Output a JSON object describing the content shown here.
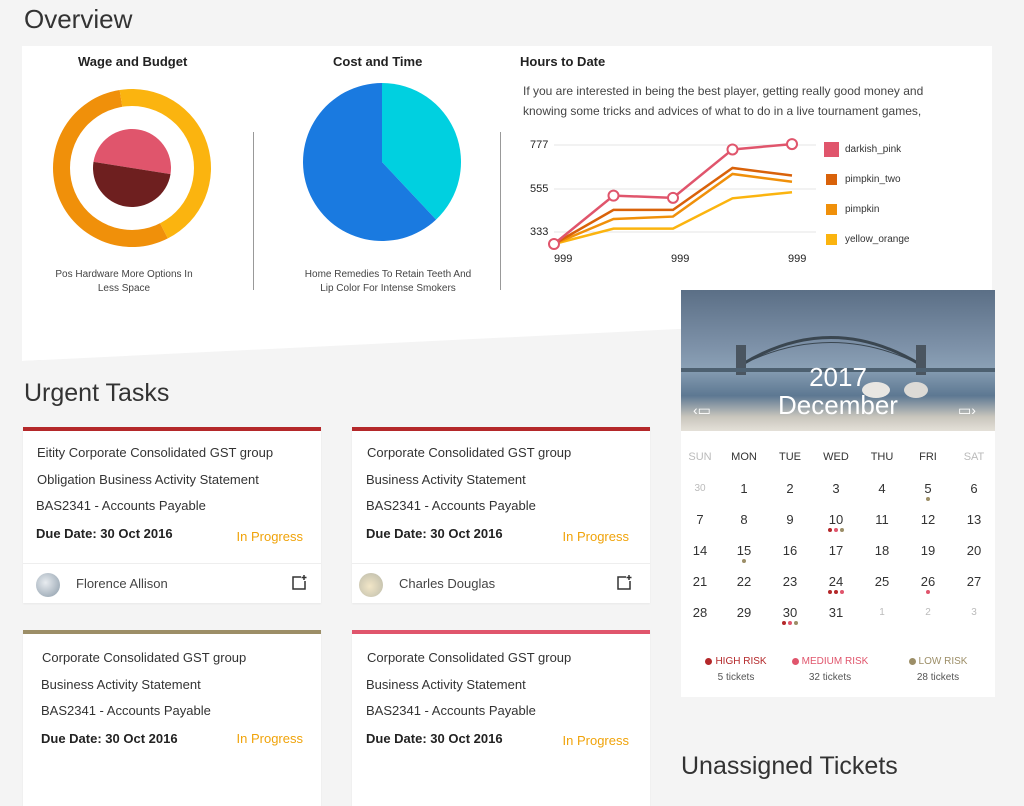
{
  "page": {
    "title": "Overview"
  },
  "overview": {
    "wage": {
      "title": "Wage and Budget",
      "caption_line1": "Pos Hardware More Options In",
      "caption_line2": "Less Space"
    },
    "cost": {
      "title": "Cost  and Time",
      "caption_line1": "Home Remedies To Retain Teeth And",
      "caption_line2": "Lip Color For Intense Smokers"
    },
    "hours": {
      "title": "Hours to Date",
      "description": "If you are interested in being the best player, getting really good money and knowing some tricks and advices of what to do in a live tournament games,"
    }
  },
  "chart_data": [
    {
      "type": "pie",
      "variant": "donut-with-inner-pie",
      "outer_ring": [
        {
          "color": "#f0900a",
          "value": 55
        },
        {
          "color": "#fbb40f",
          "value": 45
        }
      ],
      "inner_pie": [
        {
          "color": "#e0556c",
          "value": 50
        },
        {
          "color": "#6e1f1f",
          "value": 50
        }
      ]
    },
    {
      "type": "pie",
      "slices": [
        {
          "color": "#00d0e0",
          "value": 38
        },
        {
          "color": "#1a7ae0",
          "value": 62
        }
      ]
    },
    {
      "type": "line",
      "x_tick_labels": [
        "999",
        "999",
        "999"
      ],
      "y_tick_labels": [
        "777",
        "555",
        "333"
      ],
      "ylim": [
        333,
        777
      ],
      "series": [
        {
          "name": "darkish_pink",
          "color": "#e0556c",
          "values": [
            333,
            550,
            540,
            757,
            781
          ]
        },
        {
          "name": "pimpkin_two",
          "color": "#d9620a",
          "values": [
            333,
            486,
            486,
            674,
            640
          ]
        },
        {
          "name": "pimpkin",
          "color": "#f0900a",
          "values": [
            333,
            445,
            456,
            647,
            612
          ]
        },
        {
          "name": "yellow_orange",
          "color": "#fbb40f",
          "values": [
            333,
            402,
            402,
            538,
            565
          ]
        }
      ]
    }
  ],
  "urgent": {
    "title": "Urgent Tasks",
    "tasks": [
      {
        "bar_color": "#b4282a",
        "line1": "Eitity Corporate Consolidated GST group",
        "line2": "Obligation Business Activity Statement",
        "line3": "BAS2341 - Accounts Payable",
        "due": "Due Date: 30 Oct 2016",
        "status": "In Progress",
        "assignee": "Florence Allison"
      },
      {
        "bar_color": "#b4282a",
        "line1": "Corporate Consolidated GST group",
        "line2": "Business Activity Statement",
        "line3": "BAS2341 - Accounts Payable",
        "due": "Due Date: 30 Oct 2016",
        "status": "In Progress",
        "assignee": "Charles Douglas"
      },
      {
        "bar_color": "#9c8e67",
        "line1": "Corporate Consolidated GST group",
        "line2": "Business Activity Statement",
        "line3": "BAS2341 - Accounts Payable",
        "due": "Due Date: 30 Oct 2016",
        "status": "In Progress"
      },
      {
        "bar_color": "#e0556c",
        "line1": "Corporate Consolidated GST group",
        "line2": "Business Activity Statement",
        "line3": "BAS2341 - Accounts Payable",
        "due": "Due Date: 30 Oct 2016",
        "status": "In Progress"
      }
    ]
  },
  "calendar": {
    "year": "2017",
    "month": "December",
    "weekdays": [
      "SUN",
      "MON",
      "TUE",
      "WED",
      "THU",
      "FRI",
      "SAT"
    ],
    "weeks": [
      [
        "30",
        "1",
        "2",
        "3",
        "4",
        "5",
        "6"
      ],
      [
        "7",
        "8",
        "9",
        "10",
        "11",
        "12",
        "13"
      ],
      [
        "14",
        "15",
        "16",
        "17",
        "18",
        "19",
        "20"
      ],
      [
        "21",
        "22",
        "23",
        "24",
        "25",
        "26",
        "27"
      ],
      [
        "28",
        "29",
        "30",
        "31",
        "1",
        "2",
        "3"
      ]
    ],
    "risks": [
      {
        "label": "HIGH RISK",
        "tickets": "5 tickets",
        "color": "#b4282a"
      },
      {
        "label": "MEDIUM RISK",
        "tickets": "32 tickets",
        "color": "#e0556c"
      },
      {
        "label": "LOW RISK",
        "tickets": "28 tickets",
        "color": "#9c8e67"
      }
    ]
  },
  "bottom": {
    "heading": "Unassigned Tickets"
  }
}
